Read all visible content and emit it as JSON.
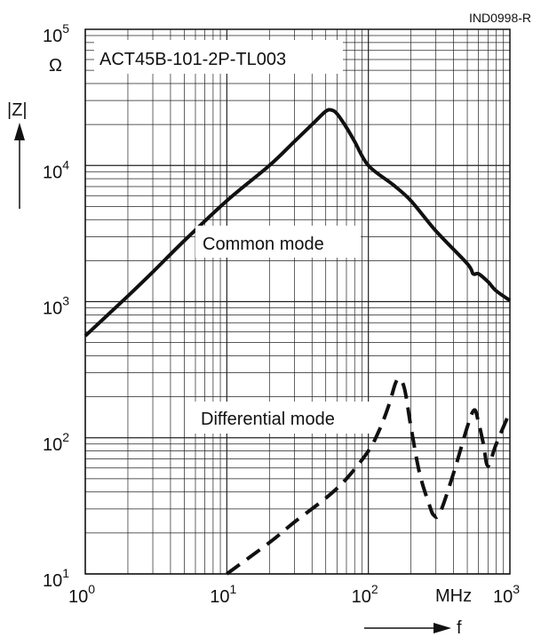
{
  "figure_id": "IND0998-R",
  "chart_data": {
    "type": "line",
    "title": "ACT45B-101-2P-TL003",
    "xlabel": "f",
    "x_unit": "MHz",
    "ylabel": "|Z|",
    "y_unit": "Ω",
    "xscale": "log",
    "yscale": "log",
    "xlim": [
      1,
      1000
    ],
    "ylim": [
      10,
      100000
    ],
    "grid": true,
    "x_tick_labels": [
      {
        "base": "10",
        "exp": "0"
      },
      {
        "base": "10",
        "exp": "1"
      },
      {
        "base": "10",
        "exp": "2"
      },
      {
        "base": "10",
        "exp": "3"
      }
    ],
    "y_tick_labels": [
      {
        "base": "10",
        "exp": "1"
      },
      {
        "base": "10",
        "exp": "2"
      },
      {
        "base": "10",
        "exp": "3"
      },
      {
        "base": "10",
        "exp": "4"
      },
      {
        "base": "10",
        "exp": "5"
      }
    ],
    "series": [
      {
        "name": "Common mode",
        "style": "solid",
        "x": [
          1.0,
          2,
          3,
          5,
          10,
          20,
          30,
          40,
          50,
          55,
          60,
          70,
          80,
          100,
          150,
          200,
          300,
          500,
          550,
          600,
          700,
          800,
          1000
        ],
        "y": [
          560,
          1100,
          1650,
          2800,
          5500,
          10000,
          15000,
          20000,
          25000,
          25500,
          24000,
          19000,
          15000,
          10000,
          7200,
          5500,
          3300,
          1900,
          1600,
          1600,
          1400,
          1200,
          1020
        ]
      },
      {
        "name": "Differential mode",
        "style": "dashed",
        "x": [
          10,
          20,
          30,
          50,
          70,
          100,
          120,
          140,
          155,
          165,
          180,
          200,
          230,
          270,
          290,
          320,
          400,
          500,
          560,
          600,
          650,
          700,
          800,
          1000
        ],
        "y": [
          10,
          17,
          24,
          36,
          50,
          80,
          115,
          175,
          250,
          270,
          230,
          120,
          55,
          32,
          27,
          28,
          55,
          120,
          160,
          130,
          90,
          62,
          90,
          155
        ]
      }
    ]
  }
}
